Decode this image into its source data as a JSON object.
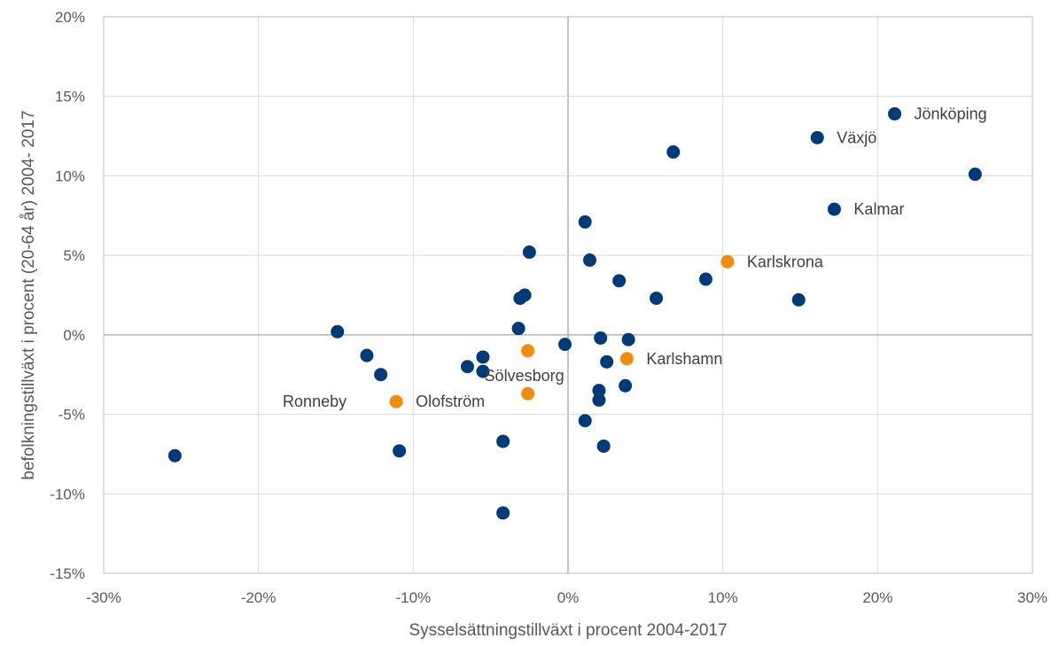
{
  "chart_data": {
    "type": "scatter",
    "xlabel": "Sysselsättningstillväxt i procent 2004-2017",
    "ylabel": "befolkningstillväxt i procent (20-64 år) 2004- 2017",
    "xlim": [
      -30,
      30
    ],
    "ylim": [
      -15,
      20
    ],
    "grid": true,
    "x_ticks": [
      -30,
      -20,
      -10,
      0,
      10,
      20,
      30
    ],
    "y_ticks": [
      -15,
      -10,
      -5,
      0,
      5,
      10,
      15,
      20
    ],
    "x_tick_labels": [
      "-30%",
      "-20%",
      "-10%",
      "0%",
      "10%",
      "20%",
      "30%"
    ],
    "y_tick_labels": [
      "-15%",
      "-10%",
      "-5%",
      "0%",
      "5%",
      "10%",
      "15%",
      "20%"
    ],
    "colors": {
      "other": "#003A78",
      "blekinge": "#F28C0F",
      "axis": "#BFBFBF",
      "grid": "#D9D9D9",
      "zero_line": "#A6A6A6"
    },
    "series": [
      {
        "color": "#003A78",
        "points": [
          {
            "x": 21.1,
            "y": 13.9
          },
          {
            "x": 16.1,
            "y": 12.4
          },
          {
            "x": 6.8,
            "y": 11.5
          },
          {
            "x": 26.3,
            "y": 10.1
          },
          {
            "x": 17.2,
            "y": 7.9
          },
          {
            "x": 1.1,
            "y": 7.1
          },
          {
            "x": -2.5,
            "y": 5.2
          },
          {
            "x": 1.4,
            "y": 4.7
          },
          {
            "x": 8.9,
            "y": 3.5
          },
          {
            "x": 3.3,
            "y": 3.4
          },
          {
            "x": -2.8,
            "y": 2.5
          },
          {
            "x": -3.1,
            "y": 2.3
          },
          {
            "x": 5.7,
            "y": 2.3
          },
          {
            "x": 14.9,
            "y": 2.2
          },
          {
            "x": -3.2,
            "y": 0.4
          },
          {
            "x": -14.9,
            "y": 0.2
          },
          {
            "x": 2.1,
            "y": -0.2
          },
          {
            "x": 3.9,
            "y": -0.3
          },
          {
            "x": -0.2,
            "y": -0.6
          },
          {
            "x": -13.0,
            "y": -1.3
          },
          {
            "x": -5.5,
            "y": -1.4
          },
          {
            "x": 2.5,
            "y": -1.7
          },
          {
            "x": -6.5,
            "y": -2.0
          },
          {
            "x": -5.5,
            "y": -2.3
          },
          {
            "x": -12.1,
            "y": -2.5
          },
          {
            "x": 3.7,
            "y": -3.2
          },
          {
            "x": 2.0,
            "y": -3.5
          },
          {
            "x": 2.0,
            "y": -4.1
          },
          {
            "x": 1.1,
            "y": -5.4
          },
          {
            "x": -4.2,
            "y": -6.7
          },
          {
            "x": 2.3,
            "y": -7.0
          },
          {
            "x": -10.9,
            "y": -7.3
          },
          {
            "x": -25.4,
            "y": -7.6
          },
          {
            "x": -4.2,
            "y": -11.2
          }
        ]
      },
      {
        "color": "#F28C0F",
        "points": [
          {
            "x": 10.3,
            "y": 4.6
          },
          {
            "x": -2.6,
            "y": -1.0
          },
          {
            "x": 3.8,
            "y": -1.5
          },
          {
            "x": -2.6,
            "y": -3.7
          },
          {
            "x": -11.1,
            "y": -4.2
          }
        ]
      }
    ],
    "annotations": [
      {
        "text": "Jönköping",
        "x": 21.1,
        "y": 13.9
      },
      {
        "text": "Växjö",
        "x": 16.1,
        "y": 12.4
      },
      {
        "text": "Kalmar",
        "x": 17.2,
        "y": 7.9
      },
      {
        "text": "Karlskrona",
        "x": 10.3,
        "y": 4.6
      },
      {
        "text": "Karlshamn",
        "x": 3.8,
        "y": -1.5
      },
      {
        "text": "Sölvesborg",
        "x": -2.6,
        "y": -3.7
      },
      {
        "text": "Olofström",
        "x": -11.1,
        "y": -4.2
      },
      {
        "text": "Ronneby",
        "x": -11.1,
        "y": -4.2
      }
    ]
  }
}
